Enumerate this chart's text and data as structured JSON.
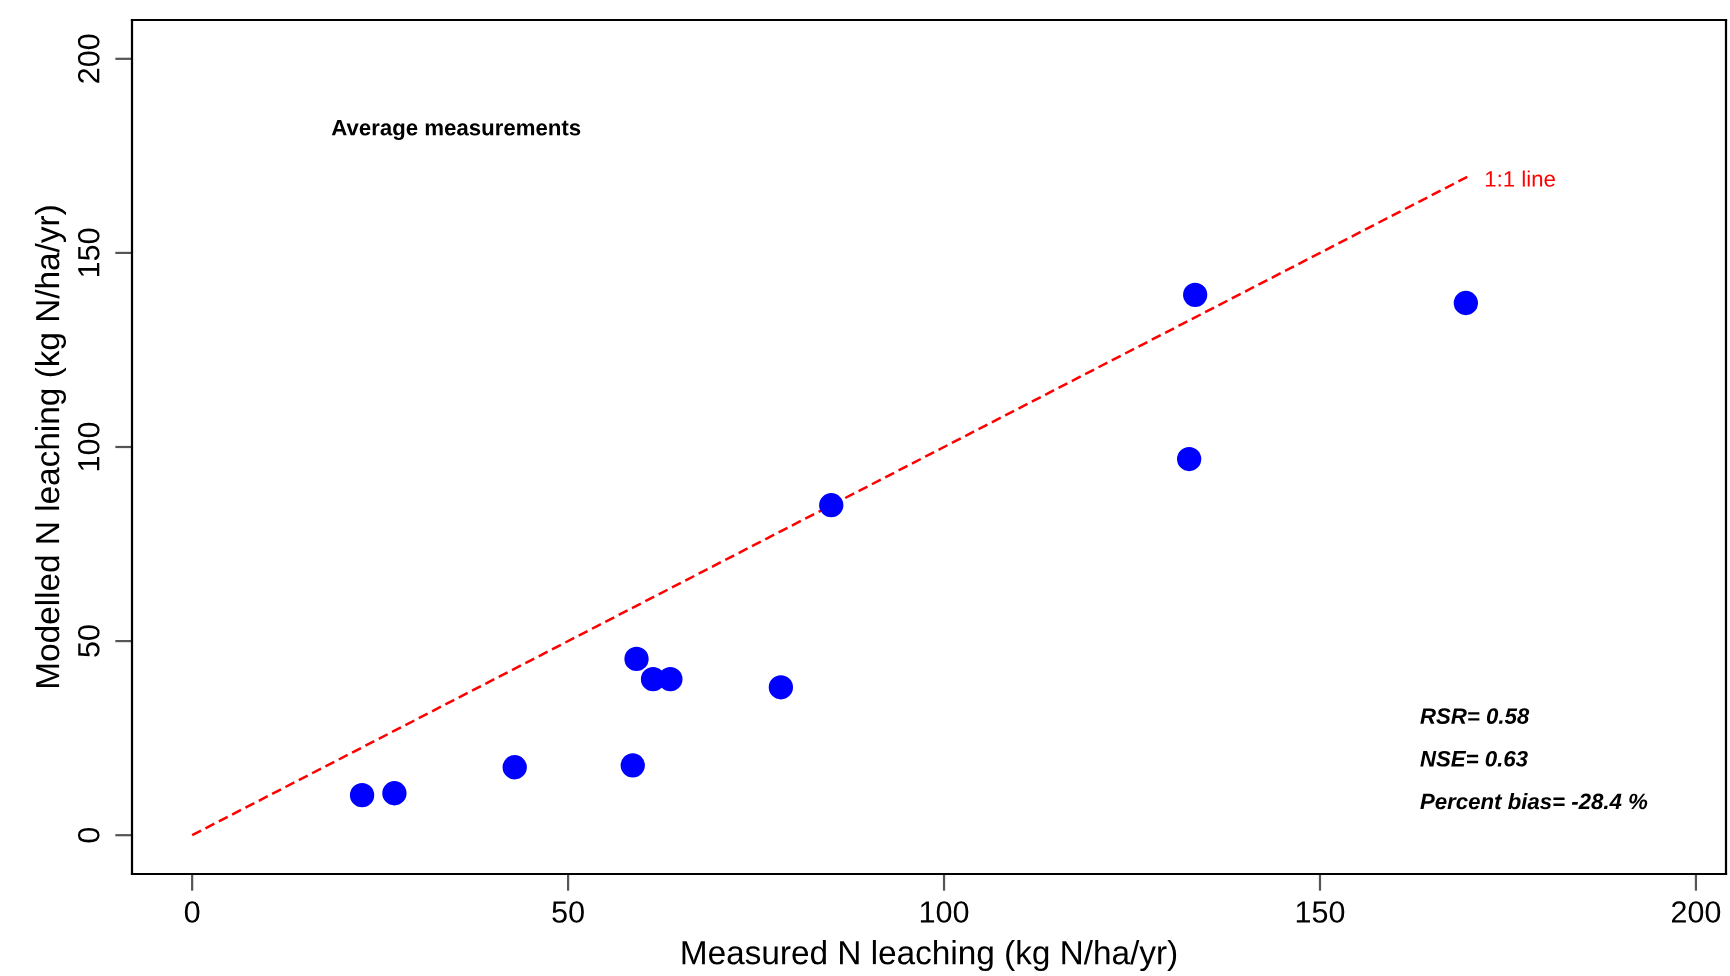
{
  "chart_data": {
    "type": "scatter",
    "xlabel": "Measured N leaching (kg N/ha/yr)",
    "ylabel": "Modelled N leaching (kg N/ha/yr)",
    "x": [
      22.6,
      26.9,
      42.9,
      58.6,
      59.1,
      61.3,
      63.6,
      78.3,
      85.0,
      132.6,
      133.4,
      169.4
    ],
    "series": [
      {
        "type": "scatter",
        "color": "#0000ff",
        "marker": "circle",
        "values": [
          10.3,
          10.8,
          17.5,
          18.0,
          45.4,
          40.2,
          40.2,
          38.1,
          85.0,
          96.9,
          139.2,
          137.1
        ]
      },
      {
        "type": "line",
        "color": "#ff0000",
        "line_style": "dashed",
        "marker": "none",
        "x": [
          0,
          170
        ],
        "values": [
          0,
          170
        ]
      }
    ],
    "xlim": [
      -8,
      204
    ],
    "ylim": [
      -10,
      210
    ],
    "xticks": [
      0,
      50,
      100,
      150,
      200
    ],
    "yticks": [
      0,
      50,
      100,
      150,
      200
    ],
    "grid": false,
    "legend": false,
    "annotations": [
      {
        "text": "1:1 line",
        "x": 170,
        "y": 170
      },
      "Average measurements",
      "RSR= 0.58",
      "NSE= 0.63",
      "Percent bias= -28.4 %"
    ]
  }
}
